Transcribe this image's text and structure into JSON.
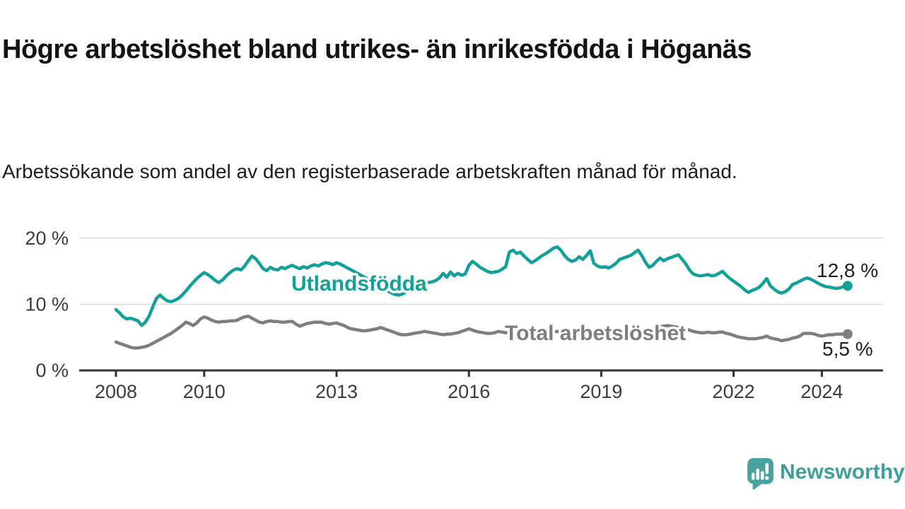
{
  "title": "Högre arbetslöshet bland utrikes- än inrikesfödda i Höganäs",
  "subtitle": "Arbetssökande som andel av den registerbaserade arbetskraften månad för månad.",
  "logo": {
    "text": "Newsworthy",
    "icon": "bar-chart-speech-bubble-icon"
  },
  "colors": {
    "teal": "#12a19a",
    "gray": "#7e7e7e",
    "grid": "#d9d9d9",
    "axis": "#333333",
    "tick_text": "#3c3c3c",
    "value_text": "#1e1e1e",
    "logo_teal": "#48a3a0",
    "background": "#ffffff"
  },
  "chart_data": {
    "type": "line",
    "title": "Högre arbetslöshet bland utrikes- än inrikesfödda i Höganäs",
    "xlabel": "",
    "ylabel": "",
    "x_unit": "month",
    "x_range": [
      "2008-01",
      "2024-08"
    ],
    "ylim": [
      0,
      20
    ],
    "grid": "horizontal",
    "yticks": [
      {
        "label": "0 %",
        "value": 0
      },
      {
        "label": "10 %",
        "value": 10
      },
      {
        "label": "20 %",
        "value": 20
      }
    ],
    "xticks": [
      {
        "label": "2008",
        "year": 2008
      },
      {
        "label": "2010",
        "year": 2010
      },
      {
        "label": "2013",
        "year": 2013
      },
      {
        "label": "2016",
        "year": 2016
      },
      {
        "label": "2019",
        "year": 2019
      },
      {
        "label": "2022",
        "year": 2022
      },
      {
        "label": "2024",
        "year": 2024
      }
    ],
    "series": [
      {
        "key": "utlandsfodda",
        "name": "Utlandsfödda",
        "color": "#12a19a",
        "end_label": "12,8 %",
        "end_value": 12.8,
        "values": [
          9.2,
          8.7,
          8.1,
          7.8,
          7.9,
          7.7,
          7.5,
          6.8,
          7.3,
          8.2,
          9.6,
          10.9,
          11.4,
          10.9,
          10.5,
          10.4,
          10.6,
          10.9,
          11.4,
          12.0,
          12.7,
          13.3,
          13.9,
          14.4,
          14.8,
          14.5,
          14.1,
          13.6,
          13.3,
          13.7,
          14.3,
          14.8,
          15.2,
          15.4,
          15.2,
          15.8,
          16.6,
          17.3,
          16.9,
          16.2,
          15.4,
          15.1,
          15.6,
          15.3,
          15.2,
          15.6,
          15.4,
          15.7,
          15.9,
          15.6,
          15.4,
          15.7,
          15.5,
          15.8,
          16.0,
          15.8,
          16.1,
          16.3,
          16.2,
          16.0,
          16.3,
          16.1,
          15.8,
          15.5,
          15.2,
          14.9,
          14.6,
          14.3,
          14.0,
          13.7,
          13.4,
          13.1,
          12.8,
          12.4,
          12.0,
          11.7,
          11.5,
          11.4,
          11.6,
          11.9,
          12.2,
          12.5,
          12.8,
          13.0,
          13.2,
          13.3,
          13.4,
          13.6,
          14.0,
          14.7,
          14.1,
          14.9,
          14.3,
          14.7,
          14.4,
          14.6,
          15.9,
          16.5,
          16.1,
          15.6,
          15.3,
          15.0,
          14.8,
          14.9,
          15.0,
          15.3,
          15.7,
          17.9,
          18.2,
          17.7,
          17.9,
          17.3,
          16.8,
          16.3,
          16.6,
          17.0,
          17.4,
          17.7,
          18.1,
          18.5,
          18.7,
          18.2,
          17.4,
          16.8,
          16.5,
          16.7,
          17.2,
          16.8,
          17.4,
          18.1,
          16.2,
          15.8,
          15.6,
          15.7,
          15.5,
          15.8,
          16.2,
          16.8,
          17.0,
          17.2,
          17.4,
          17.8,
          18.2,
          17.4,
          16.4,
          15.6,
          15.9,
          16.5,
          17.0,
          16.6,
          16.9,
          17.1,
          17.3,
          17.5,
          16.8,
          16.1,
          15.2,
          14.6,
          14.4,
          14.3,
          14.4,
          14.5,
          14.3,
          14.4,
          14.7,
          15.0,
          14.4,
          13.9,
          13.5,
          13.1,
          12.7,
          12.2,
          11.8,
          12.1,
          12.3,
          12.6,
          13.2,
          13.9,
          12.8,
          12.3,
          11.9,
          11.7,
          11.9,
          12.3,
          13.0,
          13.2,
          13.5,
          13.8,
          14.0,
          13.8,
          13.5,
          13.2,
          12.9,
          12.7,
          12.6,
          12.5,
          12.4,
          12.5,
          12.7,
          12.8
        ]
      },
      {
        "key": "total",
        "name": "Total arbetslöshet",
        "color": "#7e7e7e",
        "end_label": "5,5 %",
        "end_value": 5.5,
        "values": [
          4.3,
          4.1,
          3.9,
          3.7,
          3.5,
          3.4,
          3.4,
          3.5,
          3.6,
          3.8,
          4.1,
          4.4,
          4.7,
          5.0,
          5.3,
          5.6,
          6.0,
          6.4,
          6.8,
          7.3,
          7.1,
          6.8,
          7.2,
          7.8,
          8.1,
          7.9,
          7.6,
          7.4,
          7.3,
          7.4,
          7.4,
          7.5,
          7.5,
          7.6,
          7.9,
          8.1,
          8.2,
          7.9,
          7.6,
          7.3,
          7.2,
          7.4,
          7.5,
          7.4,
          7.4,
          7.3,
          7.3,
          7.4,
          7.4,
          7.0,
          6.7,
          6.9,
          7.1,
          7.2,
          7.3,
          7.3,
          7.3,
          7.1,
          7.0,
          7.1,
          7.2,
          7.0,
          6.8,
          6.5,
          6.3,
          6.2,
          6.1,
          6.0,
          6.0,
          6.1,
          6.2,
          6.3,
          6.5,
          6.3,
          6.1,
          5.9,
          5.7,
          5.5,
          5.4,
          5.4,
          5.5,
          5.6,
          5.7,
          5.8,
          5.9,
          5.8,
          5.7,
          5.6,
          5.5,
          5.4,
          5.5,
          5.5,
          5.6,
          5.7,
          5.9,
          6.1,
          6.3,
          6.1,
          5.9,
          5.8,
          5.7,
          5.6,
          5.6,
          5.7,
          5.9,
          5.8,
          5.7,
          5.8,
          5.8,
          5.7,
          5.7,
          5.6,
          5.6,
          5.5,
          5.6,
          5.6,
          5.7,
          5.7,
          5.8,
          5.8,
          5.9,
          5.8,
          5.7,
          5.6,
          5.5,
          5.5,
          5.6,
          5.5,
          5.6,
          5.7,
          5.6,
          5.5,
          5.6,
          5.6,
          5.5,
          5.6,
          5.7,
          5.8,
          5.9,
          5.9,
          6.0,
          6.0,
          6.1,
          6.0,
          6.0,
          5.9,
          6.1,
          6.4,
          6.6,
          6.7,
          6.8,
          6.7,
          6.6,
          6.5,
          6.4,
          6.3,
          6.1,
          5.9,
          5.8,
          5.7,
          5.7,
          5.8,
          5.7,
          5.7,
          5.8,
          5.8,
          5.6,
          5.5,
          5.3,
          5.1,
          5.0,
          4.9,
          4.8,
          4.8,
          4.8,
          4.9,
          5.0,
          5.2,
          4.9,
          4.8,
          4.7,
          4.5,
          4.6,
          4.7,
          4.9,
          5.0,
          5.2,
          5.6,
          5.6,
          5.6,
          5.5,
          5.3,
          5.2,
          5.3,
          5.4,
          5.4,
          5.5,
          5.5,
          5.5,
          5.5
        ]
      }
    ],
    "legend": "inline-labels"
  }
}
